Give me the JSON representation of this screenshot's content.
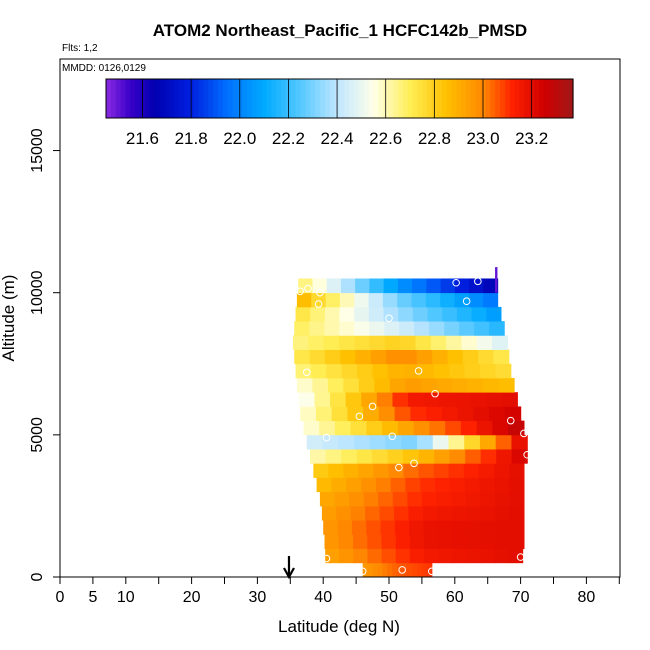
{
  "chart_data": {
    "type": "heatmap",
    "title": "ATOM2 Northeast_Pacific_1 HCFC142b_PMSD",
    "flights_note": "Flts: 1,2",
    "date_note": "MMDD: 0126,0129",
    "xlabel": "Latitude (deg N)",
    "ylabel": "Altitude (m)",
    "xlim": [
      0,
      85
    ],
    "ylim": [
      0,
      18300
    ],
    "x_ticks": [
      0,
      5,
      10,
      20,
      30,
      40,
      50,
      60,
      70,
      80
    ],
    "x_minor_ticks": [
      15,
      25,
      35,
      45,
      55,
      65,
      75,
      85
    ],
    "y_ticks": [
      0,
      5000,
      10000,
      15000
    ],
    "colorbar": {
      "min": 21.45,
      "max": 23.37,
      "ticks": [
        "21.6",
        "21.8",
        "22.0",
        "22.2",
        "22.4",
        "22.6",
        "22.8",
        "23.0",
        "23.2"
      ],
      "stops": [
        {
          "v": 21.45,
          "c": "#8a2be2"
        },
        {
          "v": 21.55,
          "c": "#3a00c8"
        },
        {
          "v": 21.65,
          "c": "#0000b0"
        },
        {
          "v": 21.8,
          "c": "#0020e0"
        },
        {
          "v": 21.95,
          "c": "#0070ff"
        },
        {
          "v": 22.1,
          "c": "#00aaff"
        },
        {
          "v": 22.25,
          "c": "#55c8ff"
        },
        {
          "v": 22.4,
          "c": "#bfe6ff"
        },
        {
          "v": 22.55,
          "c": "#ffffe8"
        },
        {
          "v": 22.7,
          "c": "#ffee55"
        },
        {
          "v": 22.85,
          "c": "#ffc000"
        },
        {
          "v": 23.0,
          "c": "#ff8800"
        },
        {
          "v": 23.12,
          "c": "#ff2200"
        },
        {
          "v": 23.25,
          "c": "#d00000"
        },
        {
          "v": 23.37,
          "c": "#a01818"
        }
      ]
    },
    "curtain": {
      "y_bins": [
        {
          "y0": 0,
          "y1": 500,
          "xl": 46.0,
          "xr": 56.5,
          "vl": 22.95,
          "vr": 23.1,
          "vm": 23.05
        },
        {
          "y0": 500,
          "y1": 1000,
          "xl": 40.3,
          "xr": 70.3,
          "vl": 22.92,
          "vr": 23.2,
          "vm": 23.15
        },
        {
          "y0": 1000,
          "y1": 1500,
          "xl": 40.2,
          "xr": 70.5,
          "vl": 22.95,
          "vr": 23.2,
          "vm": 23.18
        },
        {
          "y0": 1500,
          "y1": 2000,
          "xl": 40.0,
          "xr": 70.5,
          "vl": 22.95,
          "vr": 23.2,
          "vm": 23.18
        },
        {
          "y0": 2000,
          "y1": 2500,
          "xl": 39.8,
          "xr": 70.5,
          "vl": 22.93,
          "vr": 23.2,
          "vm": 23.15
        },
        {
          "y0": 2500,
          "y1": 3000,
          "xl": 39.5,
          "xr": 70.5,
          "vl": 22.9,
          "vr": 23.2,
          "vm": 23.12
        },
        {
          "y0": 3000,
          "y1": 3500,
          "xl": 39.0,
          "xr": 70.5,
          "vl": 22.85,
          "vr": 23.2,
          "vm": 23.1
        },
        {
          "y0": 3500,
          "y1": 4000,
          "xl": 38.5,
          "xr": 70.5,
          "vl": 22.8,
          "vr": 23.2,
          "vm": 23.05
        },
        {
          "y0": 4000,
          "y1": 4500,
          "xl": 38.0,
          "xr": 71.0,
          "vl": 22.6,
          "vr": 23.25,
          "vm": 22.85
        },
        {
          "y0": 4500,
          "y1": 5000,
          "xl": 37.5,
          "xr": 71.0,
          "vl": 22.45,
          "vr": 23.25,
          "vm": 22.3
        },
        {
          "y0": 5000,
          "y1": 5500,
          "xl": 37.0,
          "xr": 70.5,
          "vl": 22.55,
          "vr": 23.3,
          "vm": 22.95
        },
        {
          "y0": 5500,
          "y1": 6000,
          "xl": 36.5,
          "xr": 70.0,
          "vl": 22.55,
          "vr": 23.25,
          "vm": 23.1
        },
        {
          "y0": 6000,
          "y1": 6500,
          "xl": 36.3,
          "xr": 69.5,
          "vl": 22.5,
          "vr": 23.2,
          "vm": 23.15
        },
        {
          "y0": 6500,
          "y1": 7000,
          "xl": 36.0,
          "xr": 69.0,
          "vl": 22.55,
          "vr": 22.85,
          "vm": 22.95
        },
        {
          "y0": 7000,
          "y1": 7500,
          "xl": 35.8,
          "xr": 68.5,
          "vl": 22.65,
          "vr": 22.75,
          "vm": 22.9
        },
        {
          "y0": 7500,
          "y1": 8000,
          "xl": 35.6,
          "xr": 68.2,
          "vl": 22.7,
          "vr": 22.7,
          "vm": 23.0
        },
        {
          "y0": 8000,
          "y1": 8500,
          "xl": 35.4,
          "xr": 68.0,
          "vl": 22.65,
          "vr": 22.45,
          "vm": 22.8
        },
        {
          "y0": 8500,
          "y1": 9000,
          "xl": 35.6,
          "xr": 67.5,
          "vl": 22.7,
          "vr": 22.15,
          "vm": 22.45
        },
        {
          "y0": 9000,
          "y1": 9500,
          "xl": 35.8,
          "xr": 67.0,
          "vl": 22.75,
          "vr": 22.05,
          "vm": 22.35
        },
        {
          "y0": 9500,
          "y1": 10000,
          "xl": 36.0,
          "xr": 66.5,
          "vl": 22.9,
          "vr": 21.95,
          "vm": 22.3
        },
        {
          "y0": 10000,
          "y1": 10500,
          "xl": 36.2,
          "xr": 66.5,
          "vl": 22.7,
          "vr": 21.65,
          "vm": 22.05
        }
      ],
      "spike": {
        "x": 66.3,
        "y0": 10000,
        "y1": 10900,
        "v": 21.5
      }
    },
    "markers": [
      {
        "x": 46.0,
        "y": 200
      },
      {
        "x": 52.0,
        "y": 250
      },
      {
        "x": 56.5,
        "y": 200
      },
      {
        "x": 40.5,
        "y": 650
      },
      {
        "x": 70.0,
        "y": 700
      },
      {
        "x": 51.5,
        "y": 3850
      },
      {
        "x": 53.8,
        "y": 4000
      },
      {
        "x": 71.0,
        "y": 4300
      },
      {
        "x": 40.5,
        "y": 4900
      },
      {
        "x": 50.5,
        "y": 4950
      },
      {
        "x": 70.5,
        "y": 5050
      },
      {
        "x": 68.5,
        "y": 5500
      },
      {
        "x": 45.5,
        "y": 5650
      },
      {
        "x": 47.5,
        "y": 6000
      },
      {
        "x": 57.0,
        "y": 6450
      },
      {
        "x": 54.5,
        "y": 7250
      },
      {
        "x": 37.5,
        "y": 7200
      },
      {
        "x": 50.0,
        "y": 9100
      },
      {
        "x": 39.3,
        "y": 9600
      },
      {
        "x": 61.8,
        "y": 9700
      },
      {
        "x": 36.5,
        "y": 10050
      },
      {
        "x": 37.7,
        "y": 10150
      },
      {
        "x": 39.5,
        "y": 10000
      },
      {
        "x": 60.2,
        "y": 10350
      },
      {
        "x": 63.5,
        "y": 10400
      }
    ],
    "arrow_latitude": 34.8
  }
}
